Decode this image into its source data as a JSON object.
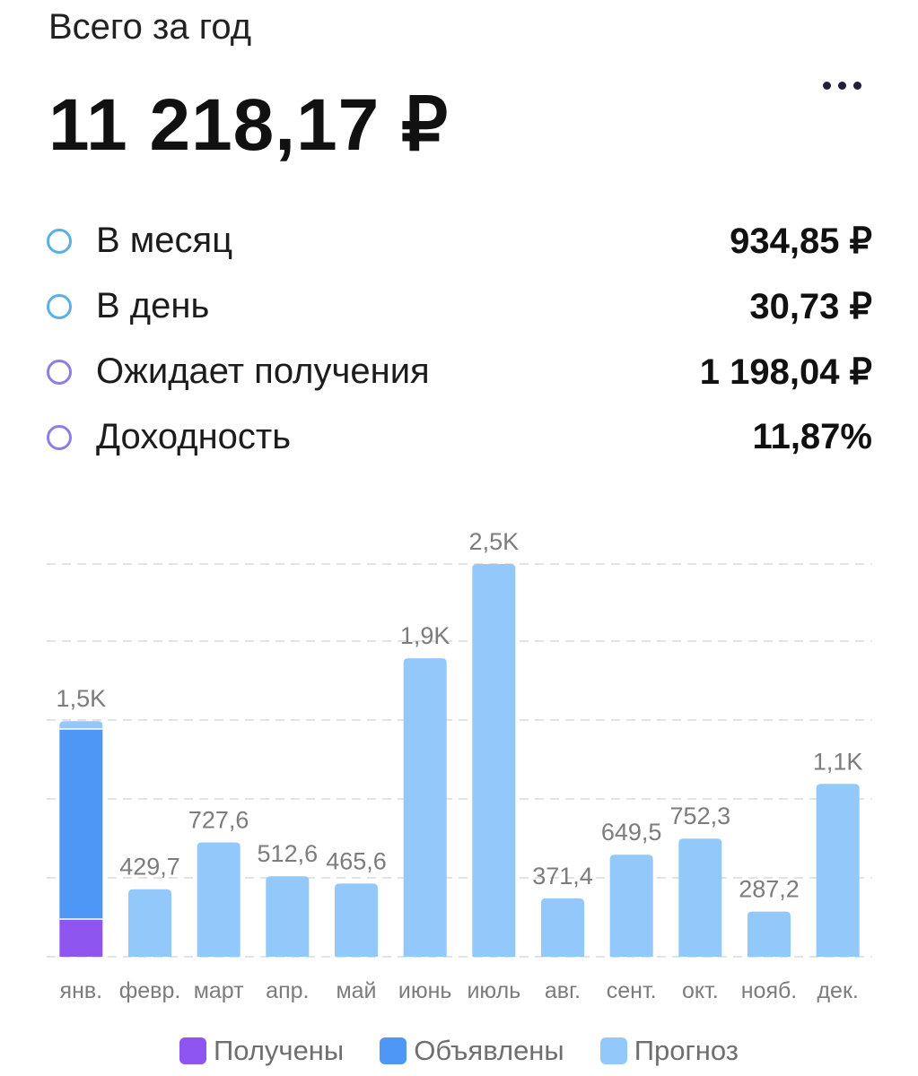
{
  "header": {
    "subtitle": "Всего за год",
    "total": "11 218,17 ₽"
  },
  "stats": [
    {
      "label": "В месяц",
      "value": "934,85 ₽",
      "marker_color": "#5ab0e6"
    },
    {
      "label": "В день",
      "value": "30,73 ₽",
      "marker_color": "#5ab0e6"
    },
    {
      "label": "Ожидает получения",
      "value": "1 198,04 ₽",
      "marker_color": "#8b80e0"
    },
    {
      "label": "Доходность",
      "value": "11,87%",
      "marker_color": "#8b80e0"
    }
  ],
  "chart_data": {
    "type": "bar",
    "stacked": true,
    "categories": [
      "янв.",
      "февр.",
      "март",
      "апр.",
      "май",
      "июнь",
      "июль",
      "авг.",
      "сент.",
      "окт.",
      "нояб.",
      "дек."
    ],
    "series": [
      {
        "name": "Получены",
        "color": "#8f55f0",
        "values": [
          240,
          0,
          0,
          0,
          0,
          0,
          0,
          0,
          0,
          0,
          0,
          0
        ]
      },
      {
        "name": "Объявлены",
        "color": "#4f97f7",
        "values": [
          1210,
          0,
          0,
          0,
          0,
          0,
          0,
          0,
          0,
          0,
          0,
          0
        ]
      },
      {
        "name": "Прогноз",
        "color": "#93c8fb",
        "values": [
          50,
          429.7,
          727.6,
          512.6,
          465.6,
          1900,
          2500,
          371.4,
          649.5,
          752.3,
          287.2,
          1100
        ]
      }
    ],
    "data_labels": [
      "1,5K",
      "429,7",
      "727,6",
      "512,6",
      "465,6",
      "1,9K",
      "2,5K",
      "371,4",
      "649,5",
      "752,3",
      "287,2",
      "1,1K"
    ],
    "ylim": [
      0,
      2500
    ],
    "grid": true,
    "legend": "bottom-center"
  }
}
